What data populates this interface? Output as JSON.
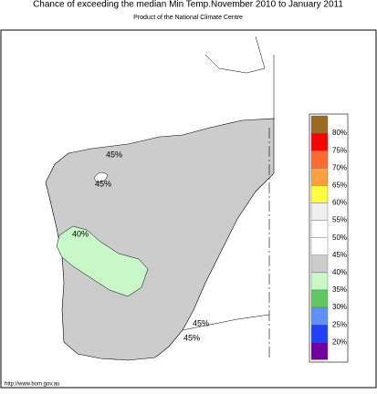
{
  "header": {
    "title": "Chance of exceeding the median Min Temp.November 2010 to January 2011",
    "subtitle": "Product of the National Climate Centre"
  },
  "map": {
    "labels": [
      "45%",
      "45%",
      "40%",
      "45%",
      "45%"
    ]
  },
  "legend": {
    "colors": [
      "#9c6a22",
      "#ff0000",
      "#ff6a30",
      "#ffa040",
      "#ffff40",
      "#efefef",
      "#ffffff",
      "#ffffff",
      "#cccccc",
      "#c8f8c8",
      "#60c860",
      "#6090ff",
      "#2040ff",
      "#7000a0"
    ],
    "labels": [
      "80%",
      "75%",
      "70%",
      "65%",
      "60%",
      "55%",
      "50%",
      "45%",
      "40%",
      "35%",
      "30%",
      "25%",
      "20%"
    ]
  },
  "footer": {
    "url": "http://www.bom.gov.au"
  }
}
